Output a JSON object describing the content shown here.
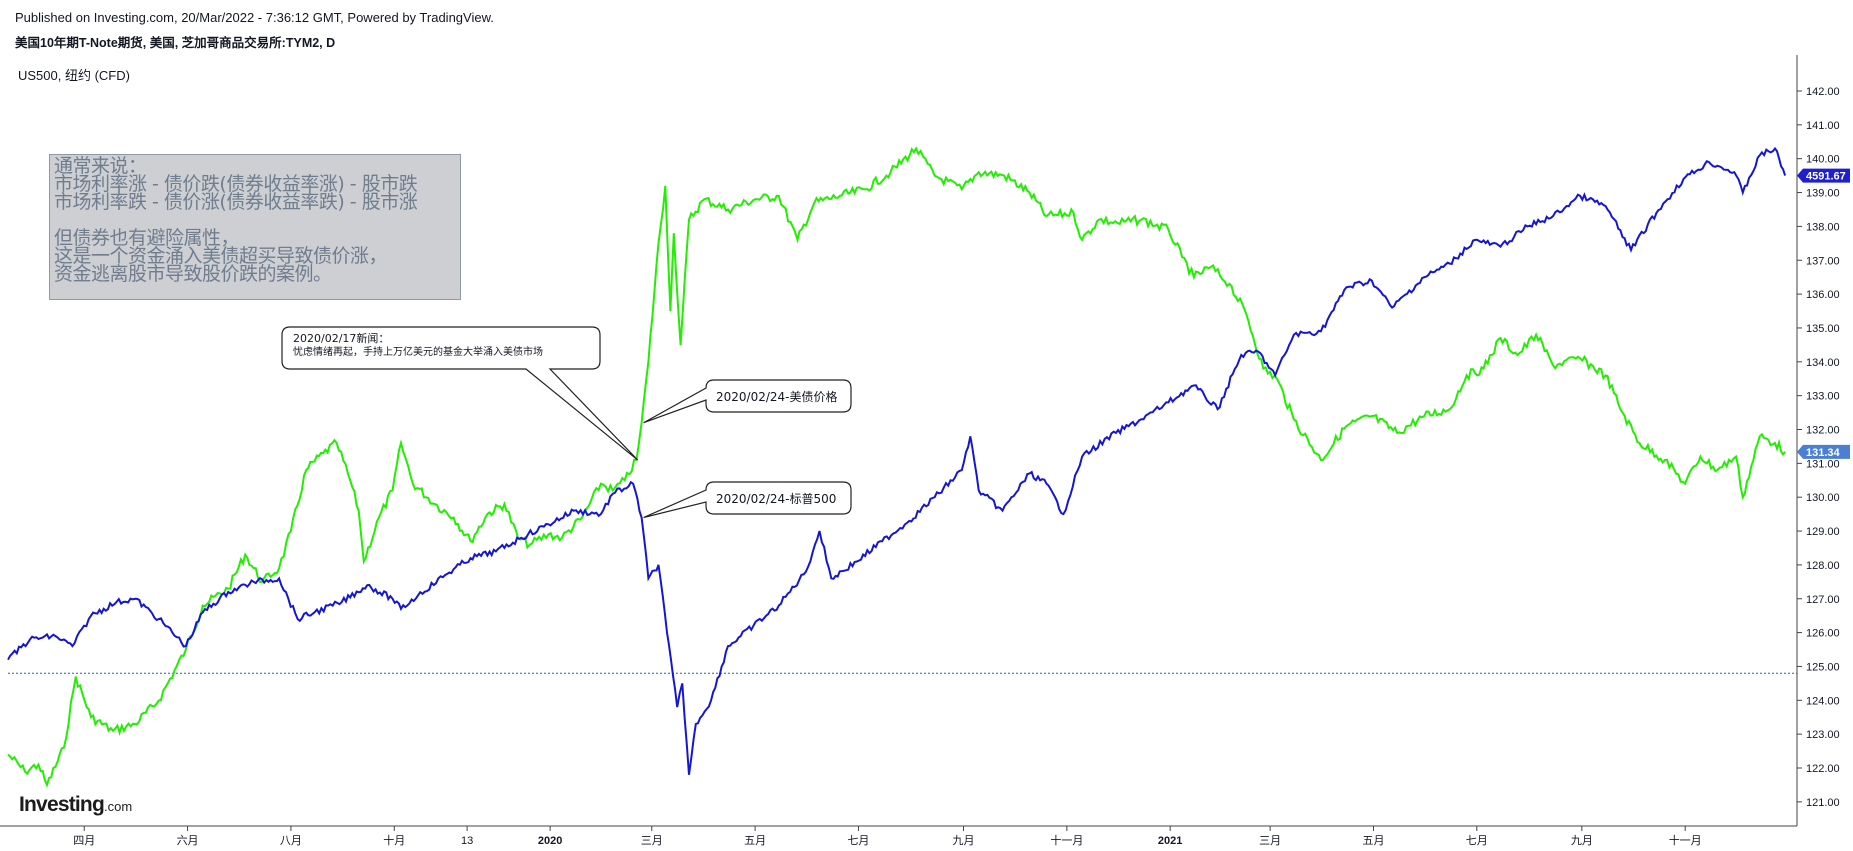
{
  "header": {
    "published": "Published on Investing.com, 20/Mar/2022 - 7:36:12 GMT, Powered by TradingView.",
    "instrument": "美国10年期T-Note期货, 美国, 芝加哥商品交易所:TYM2, D"
  },
  "overlay_symbol": "US500, 纽约 (CFD)",
  "note_box": {
    "lines": [
      "通常来说：",
      "市场利率涨 - 债价跌(债券收益率涨) - 股市跌",
      "市场利率跌 - 债价涨(债券收益率跌) - 股市涨",
      "",
      "但债券也有避险属性，",
      "这是一个资金涌入美债超买导致债价涨，",
      "资金逃离股市导致股价跌的案例。"
    ]
  },
  "callouts": {
    "news_date": "2020/02/17新闻：",
    "news_text": "忧虑情绪再起，手持上万亿美元的基金大举涌入美债市场",
    "bond_label": "2020/02/24-美债价格",
    "stock_label": "2020/02/24-标普500"
  },
  "logo": {
    "main": "Investing",
    "suffix": ".com"
  },
  "colors": {
    "bond_series": "#22ee00",
    "stock_series": "#1515d6",
    "axis_text": "#131722",
    "dotted_line": "#1f5fbf",
    "bond_price_badge": "#4a7fd3",
    "stock_price_badge": "#1f1fd0"
  },
  "chart_data": {
    "type": "line",
    "x_tick_labels": [
      "四月",
      "六月",
      "八月",
      "十月",
      "13",
      "2020",
      "三月",
      "五月",
      "七月",
      "九月",
      "十一月",
      "2021",
      "三月",
      "五月",
      "七月",
      "九月",
      "十一月"
    ],
    "x_tick_dates": [
      "2019-04-01",
      "2019-06-01",
      "2019-08-01",
      "2019-10-01",
      "2019-11-13",
      "2020-01-01",
      "2020-03-01",
      "2020-05-01",
      "2020-07-01",
      "2020-09-01",
      "2020-11-01",
      "2021-01-01",
      "2021-03-01",
      "2021-05-01",
      "2021-07-01",
      "2021-09-01",
      "2021-11-01"
    ],
    "y_ticks": [
      121,
      122,
      123,
      124,
      125,
      126,
      127,
      128,
      129,
      130,
      131,
      132,
      133,
      134,
      135,
      136,
      137,
      138,
      139,
      140,
      141,
      142
    ],
    "y_tick_labels": [
      "121.00",
      "122.00",
      "123.00",
      "124.00",
      "125.00",
      "126.00",
      "127.00",
      "128.00",
      "129.00",
      "130.00",
      "131.00",
      "132.00",
      "133.00",
      "134.00",
      "135.00",
      "136.00",
      "137.00",
      "138.00",
      "139.00",
      "140.00",
      "141.00",
      "142.00"
    ],
    "ylim": [
      120.5,
      142.6
    ],
    "reference_line_value": 124.8,
    "last_values": {
      "stock_label": "4591.67",
      "bond_label": "131.34"
    },
    "series": [
      {
        "role": "bond",
        "values_on_axis": true,
        "points": [
          [
            "2019-02-15",
            122.4
          ],
          [
            "2019-02-25",
            121.9
          ],
          [
            "2019-03-05",
            122.1
          ],
          [
            "2019-03-10",
            121.5
          ],
          [
            "2019-03-20",
            122.6
          ],
          [
            "2019-03-27",
            124.7
          ],
          [
            "2019-04-05",
            123.5
          ],
          [
            "2019-04-18",
            123.1
          ],
          [
            "2019-05-01",
            123.3
          ],
          [
            "2019-05-15",
            124.0
          ],
          [
            "2019-05-31",
            125.5
          ],
          [
            "2019-06-10",
            126.8
          ],
          [
            "2019-06-25",
            127.3
          ],
          [
            "2019-07-05",
            128.3
          ],
          [
            "2019-07-15",
            127.5
          ],
          [
            "2019-07-25",
            127.9
          ],
          [
            "2019-08-01",
            129.0
          ],
          [
            "2019-08-10",
            130.8
          ],
          [
            "2019-08-20",
            131.3
          ],
          [
            "2019-08-28",
            131.6
          ],
          [
            "2019-09-05",
            130.5
          ],
          [
            "2019-09-10",
            129.6
          ],
          [
            "2019-09-13",
            128.1
          ],
          [
            "2019-09-22",
            129.4
          ],
          [
            "2019-09-30",
            130.2
          ],
          [
            "2019-10-05",
            131.6
          ],
          [
            "2019-10-12",
            130.4
          ],
          [
            "2019-10-25",
            129.8
          ],
          [
            "2019-11-05",
            129.4
          ],
          [
            "2019-11-15",
            128.7
          ],
          [
            "2019-11-25",
            129.5
          ],
          [
            "2019-12-05",
            129.8
          ],
          [
            "2019-12-13",
            128.8
          ],
          [
            "2019-12-20",
            128.6
          ],
          [
            "2019-12-31",
            128.9
          ],
          [
            "2020-01-08",
            128.8
          ],
          [
            "2020-01-20",
            129.4
          ],
          [
            "2020-01-31",
            130.4
          ],
          [
            "2020-02-07",
            130.2
          ],
          [
            "2020-02-14",
            130.5
          ],
          [
            "2020-02-21",
            131.1
          ],
          [
            "2020-02-24",
            132.2
          ],
          [
            "2020-02-28",
            134.0
          ],
          [
            "2020-03-05",
            137.5
          ],
          [
            "2020-03-09",
            139.2
          ],
          [
            "2020-03-12",
            135.5
          ],
          [
            "2020-03-14",
            137.8
          ],
          [
            "2020-03-18",
            134.5
          ],
          [
            "2020-03-23",
            138.2
          ],
          [
            "2020-04-01",
            138.8
          ],
          [
            "2020-04-15",
            138.5
          ],
          [
            "2020-05-01",
            138.8
          ],
          [
            "2020-05-15",
            138.9
          ],
          [
            "2020-05-26",
            137.6
          ],
          [
            "2020-06-05",
            138.7
          ],
          [
            "2020-06-20",
            138.9
          ],
          [
            "2020-07-05",
            139.1
          ],
          [
            "2020-07-20",
            139.6
          ],
          [
            "2020-08-04",
            140.3
          ],
          [
            "2020-08-15",
            139.5
          ],
          [
            "2020-08-31",
            139.1
          ],
          [
            "2020-09-10",
            139.6
          ],
          [
            "2020-09-25",
            139.5
          ],
          [
            "2020-10-10",
            139.0
          ],
          [
            "2020-10-20",
            138.3
          ],
          [
            "2020-11-05",
            138.4
          ],
          [
            "2020-11-10",
            137.6
          ],
          [
            "2020-11-20",
            138.2
          ],
          [
            "2020-12-01",
            138.1
          ],
          [
            "2020-12-15",
            138.2
          ],
          [
            "2020-12-31",
            137.9
          ],
          [
            "2021-01-08",
            137.1
          ],
          [
            "2021-01-15",
            136.5
          ],
          [
            "2021-01-25",
            136.8
          ],
          [
            "2021-02-05",
            136.3
          ],
          [
            "2021-02-15",
            135.4
          ],
          [
            "2021-02-25",
            133.8
          ],
          [
            "2021-03-05",
            133.5
          ],
          [
            "2021-03-15",
            132.3
          ],
          [
            "2021-03-31",
            131.1
          ],
          [
            "2021-04-15",
            132.1
          ],
          [
            "2021-04-30",
            132.4
          ],
          [
            "2021-05-15",
            131.9
          ],
          [
            "2021-05-31",
            132.4
          ],
          [
            "2021-06-15",
            132.6
          ],
          [
            "2021-06-25",
            133.6
          ],
          [
            "2021-07-05",
            133.8
          ],
          [
            "2021-07-15",
            134.7
          ],
          [
            "2021-07-25",
            134.2
          ],
          [
            "2021-08-05",
            134.8
          ],
          [
            "2021-08-15",
            133.9
          ],
          [
            "2021-08-31",
            134.1
          ],
          [
            "2021-09-15",
            133.6
          ],
          [
            "2021-09-25",
            132.5
          ],
          [
            "2021-10-05",
            131.6
          ],
          [
            "2021-10-20",
            131.1
          ],
          [
            "2021-11-01",
            130.4
          ],
          [
            "2021-11-10",
            131.2
          ],
          [
            "2021-11-20",
            130.8
          ],
          [
            "2021-12-01",
            131.2
          ],
          [
            "2021-12-05",
            130.0
          ],
          [
            "2021-12-15",
            131.8
          ],
          [
            "2021-12-24",
            131.6
          ],
          [
            "2021-12-30",
            131.34
          ]
        ]
      },
      {
        "role": "stock",
        "values_on_axis": false,
        "axis_equivalent_points": [
          [
            "2019-02-15",
            125.2
          ],
          [
            "2019-02-28",
            125.8
          ],
          [
            "2019-03-15",
            125.9
          ],
          [
            "2019-03-25",
            125.6
          ],
          [
            "2019-04-05",
            126.5
          ],
          [
            "2019-04-20",
            126.9
          ],
          [
            "2019-05-01",
            127.0
          ],
          [
            "2019-05-15",
            126.4
          ],
          [
            "2019-05-31",
            125.6
          ],
          [
            "2019-06-10",
            126.6
          ],
          [
            "2019-06-25",
            127.2
          ],
          [
            "2019-07-10",
            127.5
          ],
          [
            "2019-07-25",
            127.6
          ],
          [
            "2019-08-05",
            126.4
          ],
          [
            "2019-08-15",
            126.6
          ],
          [
            "2019-08-31",
            126.9
          ],
          [
            "2019-09-15",
            127.4
          ],
          [
            "2019-09-30",
            127.0
          ],
          [
            "2019-10-05",
            126.7
          ],
          [
            "2019-10-15",
            127.1
          ],
          [
            "2019-10-31",
            127.7
          ],
          [
            "2019-11-15",
            128.2
          ],
          [
            "2019-11-30",
            128.4
          ],
          [
            "2019-12-15",
            128.8
          ],
          [
            "2019-12-31",
            129.2
          ],
          [
            "2020-01-15",
            129.6
          ],
          [
            "2020-01-31",
            129.5
          ],
          [
            "2020-02-07",
            130.1
          ],
          [
            "2020-02-19",
            130.4
          ],
          [
            "2020-02-24",
            129.4
          ],
          [
            "2020-02-28",
            127.6
          ],
          [
            "2020-03-05",
            128.0
          ],
          [
            "2020-03-10",
            126.0
          ],
          [
            "2020-03-16",
            123.8
          ],
          [
            "2020-03-19",
            124.5
          ],
          [
            "2020-03-23",
            121.8
          ],
          [
            "2020-03-27",
            123.3
          ],
          [
            "2020-04-05",
            124.0
          ],
          [
            "2020-04-15",
            125.6
          ],
          [
            "2020-04-30",
            126.2
          ],
          [
            "2020-05-15",
            126.8
          ],
          [
            "2020-05-31",
            127.8
          ],
          [
            "2020-06-08",
            129.0
          ],
          [
            "2020-06-15",
            127.6
          ],
          [
            "2020-06-30",
            128.1
          ],
          [
            "2020-07-15",
            128.7
          ],
          [
            "2020-07-31",
            129.3
          ],
          [
            "2020-08-15",
            130.0
          ],
          [
            "2020-08-31",
            130.8
          ],
          [
            "2020-09-05",
            131.8
          ],
          [
            "2020-09-10",
            130.2
          ],
          [
            "2020-09-24",
            129.6
          ],
          [
            "2020-10-10",
            130.7
          ],
          [
            "2020-10-20",
            130.4
          ],
          [
            "2020-10-30",
            129.5
          ],
          [
            "2020-11-10",
            131.2
          ],
          [
            "2020-11-30",
            131.9
          ],
          [
            "2020-12-15",
            132.3
          ],
          [
            "2020-12-31",
            132.8
          ],
          [
            "2021-01-15",
            133.3
          ],
          [
            "2021-01-29",
            132.6
          ],
          [
            "2021-02-12",
            134.2
          ],
          [
            "2021-02-22",
            134.3
          ],
          [
            "2021-03-04",
            133.6
          ],
          [
            "2021-03-15",
            134.8
          ],
          [
            "2021-03-31",
            134.9
          ],
          [
            "2021-04-15",
            136.2
          ],
          [
            "2021-04-30",
            136.4
          ],
          [
            "2021-05-12",
            135.6
          ],
          [
            "2021-05-31",
            136.5
          ],
          [
            "2021-06-15",
            136.9
          ],
          [
            "2021-06-30",
            137.6
          ],
          [
            "2021-07-15",
            137.4
          ],
          [
            "2021-07-31",
            138.0
          ],
          [
            "2021-08-15",
            138.3
          ],
          [
            "2021-08-31",
            138.9
          ],
          [
            "2021-09-15",
            138.6
          ],
          [
            "2021-09-30",
            137.3
          ],
          [
            "2021-10-15",
            138.4
          ],
          [
            "2021-10-31",
            139.4
          ],
          [
            "2021-11-15",
            139.9
          ],
          [
            "2021-11-30",
            139.6
          ],
          [
            "2021-12-05",
            139.0
          ],
          [
            "2021-12-15",
            140.1
          ],
          [
            "2021-12-24",
            140.3
          ],
          [
            "2021-12-30",
            139.5
          ]
        ]
      }
    ]
  }
}
